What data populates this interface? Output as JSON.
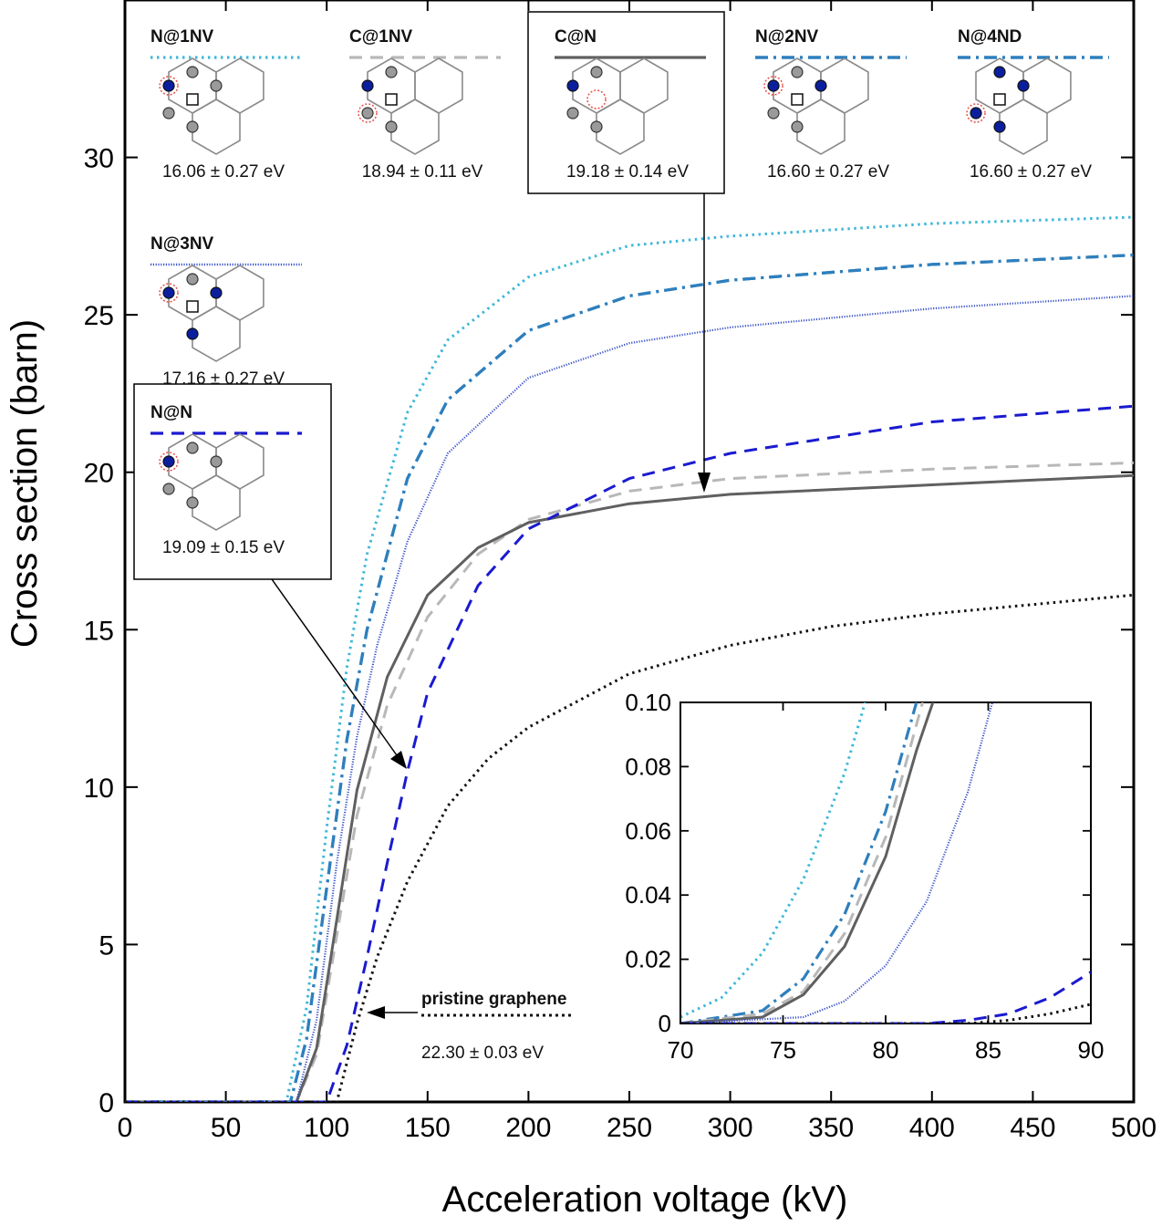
{
  "chart_data": {
    "type": "line",
    "title": "",
    "xlabel": "Acceleration voltage (kV)",
    "ylabel": "Cross section (barn)",
    "xlim": [
      0,
      500
    ],
    "ylim": [
      0,
      35
    ],
    "x_ticks": [
      "0",
      "50",
      "100",
      "150",
      "200",
      "250",
      "300",
      "350",
      "400",
      "450",
      "500"
    ],
    "y_ticks": [
      "0",
      "5",
      "10",
      "15",
      "20",
      "25",
      "30"
    ],
    "grid": false,
    "legend": "inline structure diagrams along the top",
    "series": [
      {
        "name": "N@1NV",
        "energy": "16.06 ± 0.27 eV",
        "color": "#3fb8d8",
        "style": "dotted",
        "x": [
          80,
          90,
          100,
          110,
          120,
          140,
          160,
          200,
          250,
          300,
          400,
          500
        ],
        "y": [
          0,
          3.0,
          8.7,
          13.8,
          17.4,
          21.9,
          24.2,
          26.2,
          27.2,
          27.5,
          27.9,
          28.1
        ]
      },
      {
        "name": "C@1NV",
        "energy": "18.94 ± 0.11 eV",
        "color": "#b8b8b8",
        "style": "dashed",
        "x": [
          85,
          95,
          105,
          115,
          130,
          150,
          175,
          200,
          250,
          300,
          400,
          500
        ],
        "y": [
          0,
          1.5,
          5.3,
          9.1,
          12.6,
          15.4,
          17.4,
          18.5,
          19.4,
          19.8,
          20.1,
          20.3
        ]
      },
      {
        "name": "C@N",
        "energy": "19.18 ± 0.14 eV",
        "color": "#606060",
        "style": "solid",
        "x": [
          85,
          95,
          105,
          115,
          130,
          150,
          175,
          200,
          250,
          300,
          400,
          500
        ],
        "y": [
          0,
          1.7,
          5.8,
          9.9,
          13.5,
          16.1,
          17.6,
          18.4,
          19.0,
          19.3,
          19.6,
          19.9
        ]
      },
      {
        "name": "N@2NV",
        "energy": "16.60 ± 0.27 eV",
        "color": "#2e7fbd",
        "style": "dashdot",
        "x": [
          82,
          90,
          100,
          110,
          120,
          140,
          160,
          200,
          250,
          300,
          400,
          500
        ],
        "y": [
          0,
          2.0,
          6.8,
          11.5,
          15.0,
          19.8,
          22.3,
          24.5,
          25.6,
          26.1,
          26.6,
          26.9
        ]
      },
      {
        "name": "N@4ND",
        "energy": "16.60 ± 0.27 eV",
        "color": "#2e7fbd",
        "style": "dashdot",
        "x": [
          82,
          90,
          100,
          110,
          120,
          140,
          160,
          200,
          250,
          300,
          400,
          500
        ],
        "y": [
          0,
          2.0,
          6.8,
          11.5,
          15.0,
          19.8,
          22.3,
          24.5,
          25.6,
          26.1,
          26.6,
          26.9
        ]
      },
      {
        "name": "N@3NV",
        "energy": "17.16 ± 0.27 eV",
        "color": "#3a52c8",
        "style": "fine-dotted",
        "x": [
          85,
          95,
          105,
          115,
          125,
          140,
          160,
          200,
          250,
          300,
          400,
          500
        ],
        "y": [
          0,
          2.6,
          7.6,
          11.6,
          14.5,
          17.8,
          20.6,
          23.0,
          24.1,
          24.6,
          25.2,
          25.6
        ]
      },
      {
        "name": "N@N",
        "energy": "19.09 ± 0.15 eV",
        "color": "#1a1ad0",
        "style": "dashed",
        "x": [
          100,
          110,
          120,
          130,
          140,
          150,
          175,
          200,
          250,
          300,
          400,
          500
        ],
        "y": [
          0,
          1.8,
          4.6,
          7.6,
          10.5,
          13.0,
          16.4,
          18.2,
          19.8,
          20.6,
          21.6,
          22.1
        ]
      },
      {
        "name": "pristine graphene",
        "energy": "22.30 ± 0.03 eV",
        "color": "#111111",
        "style": "dotted",
        "x": [
          105,
          115,
          125,
          140,
          160,
          180,
          200,
          250,
          300,
          350,
          400,
          450,
          500
        ],
        "y": [
          0,
          2.5,
          4.6,
          7.0,
          9.4,
          10.9,
          11.9,
          13.6,
          14.5,
          15.1,
          15.5,
          15.8,
          16.1
        ]
      }
    ],
    "inset": {
      "xlim": [
        70,
        90
      ],
      "ylim": [
        0,
        0.1
      ],
      "x_ticks": [
        "70",
        "75",
        "80",
        "85",
        "90"
      ],
      "y_ticks": [
        "0",
        "0.02",
        "0.04",
        "0.06",
        "0.08",
        "0.10"
      ],
      "series": [
        {
          "name": "N@1NV",
          "x": [
            70,
            72,
            74,
            76,
            78,
            79
          ],
          "y": [
            0.002,
            0.008,
            0.022,
            0.045,
            0.078,
            0.1
          ]
        },
        {
          "name": "N@2NV",
          "x": [
            70,
            74,
            76,
            78,
            80,
            81.5
          ],
          "y": [
            0,
            0.004,
            0.014,
            0.034,
            0.066,
            0.1
          ]
        },
        {
          "name": "C@1NV",
          "x": [
            70,
            74,
            76,
            78,
            80,
            81.8
          ],
          "y": [
            0,
            0.003,
            0.01,
            0.028,
            0.058,
            0.1
          ]
        },
        {
          "name": "C@N",
          "x": [
            70,
            74,
            76,
            78,
            80,
            81.5,
            82.3
          ],
          "y": [
            0,
            0.002,
            0.009,
            0.024,
            0.052,
            0.085,
            0.1
          ]
        },
        {
          "name": "N@3NV",
          "x": [
            70,
            76,
            78,
            80,
            82,
            84,
            85.2
          ],
          "y": [
            0,
            0.002,
            0.007,
            0.018,
            0.038,
            0.072,
            0.1
          ]
        },
        {
          "name": "N@N",
          "x": [
            70,
            82,
            84,
            86,
            88,
            90
          ],
          "y": [
            0,
            0,
            0.001,
            0.003,
            0.008,
            0.016
          ]
        },
        {
          "name": "pristine graphene",
          "x": [
            70,
            84,
            86,
            88,
            90
          ],
          "y": [
            0,
            0,
            0.001,
            0.003,
            0.006
          ]
        }
      ]
    }
  },
  "legend_items": [
    {
      "name": "N@1NV",
      "energy": "16.06 ± 0.27 eV",
      "style": "dotted",
      "color": "#3fb8d8",
      "framed": false
    },
    {
      "name": "C@1NV",
      "energy": "18.94 ± 0.11 eV",
      "style": "dashed",
      "color": "#b8b8b8",
      "framed": false
    },
    {
      "name": "C@N",
      "energy": "19.18 ± 0.14 eV",
      "style": "solid",
      "color": "#606060",
      "framed": true
    },
    {
      "name": "N@2NV",
      "energy": "16.60 ± 0.27 eV",
      "style": "dashdot",
      "color": "#2e7fbd",
      "framed": false
    },
    {
      "name": "N@4ND",
      "energy": "16.60 ± 0.27 eV",
      "style": "dashdot",
      "color": "#2e7fbd",
      "framed": false
    },
    {
      "name": "N@3NV",
      "energy": "17.16 ± 0.27 eV",
      "style": "fine-dotted",
      "color": "#3a52c8",
      "framed": false
    },
    {
      "name": "N@N",
      "energy": "19.09 ± 0.15 eV",
      "style": "dashed",
      "color": "#1a1ad0",
      "framed": true
    }
  ],
  "pristine_label": {
    "name": "pristine graphene",
    "energy": "22.30 ± 0.03 eV"
  }
}
